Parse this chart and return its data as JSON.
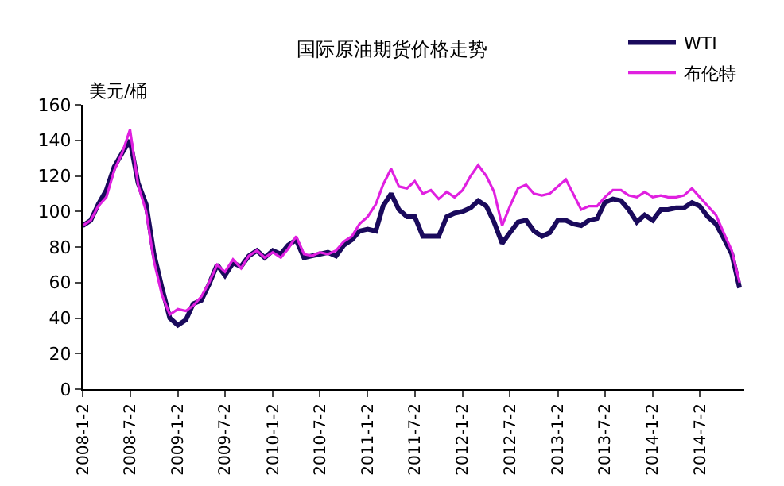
{
  "chart_data": {
    "type": "line",
    "title": "国际原油期货价格走势",
    "ylabel": "美元/桶",
    "x": [
      "2008-01-02",
      "2008-02-02",
      "2008-03-02",
      "2008-04-02",
      "2008-05-02",
      "2008-06-02",
      "2008-07-02",
      "2008-08-02",
      "2008-09-02",
      "2008-10-02",
      "2008-11-02",
      "2008-12-02",
      "2009-01-02",
      "2009-02-02",
      "2009-03-02",
      "2009-04-02",
      "2009-05-02",
      "2009-06-02",
      "2009-07-02",
      "2009-08-02",
      "2009-09-02",
      "2009-10-02",
      "2009-11-02",
      "2009-12-02",
      "2010-01-02",
      "2010-02-02",
      "2010-03-02",
      "2010-04-02",
      "2010-05-02",
      "2010-06-02",
      "2010-07-02",
      "2010-08-02",
      "2010-09-02",
      "2010-10-02",
      "2010-11-02",
      "2010-12-02",
      "2011-01-02",
      "2011-02-02",
      "2011-03-02",
      "2011-04-02",
      "2011-05-02",
      "2011-06-02",
      "2011-07-02",
      "2011-08-02",
      "2011-09-02",
      "2011-10-02",
      "2011-11-02",
      "2011-12-02",
      "2012-01-02",
      "2012-02-02",
      "2012-03-02",
      "2012-04-02",
      "2012-05-02",
      "2012-06-02",
      "2012-07-02",
      "2012-08-02",
      "2012-09-02",
      "2012-10-02",
      "2012-11-02",
      "2012-12-02",
      "2013-01-02",
      "2013-02-02",
      "2013-03-02",
      "2013-04-02",
      "2013-05-02",
      "2013-06-02",
      "2013-07-02",
      "2013-08-02",
      "2013-09-02",
      "2013-10-02",
      "2013-11-02",
      "2013-12-02",
      "2014-01-02",
      "2014-02-02",
      "2014-03-02",
      "2014-04-02",
      "2014-05-02",
      "2014-06-02",
      "2014-07-02",
      "2014-08-02",
      "2014-09-02",
      "2014-10-02",
      "2014-11-02",
      "2014-12-02"
    ],
    "series": [
      {
        "name": "WTI",
        "color": "#1a0a5c",
        "values": [
          92,
          95,
          104,
          112,
          125,
          133,
          140,
          116,
          104,
          76,
          57,
          40,
          36,
          39,
          48,
          50,
          59,
          70,
          64,
          71,
          69,
          75,
          78,
          74,
          78,
          76,
          81,
          84,
          74,
          75,
          76,
          77,
          75,
          81,
          84,
          89,
          90,
          89,
          103,
          110,
          101,
          97,
          97,
          86,
          86,
          86,
          97,
          99,
          100,
          102,
          106,
          103,
          94,
          82,
          88,
          94,
          95,
          89,
          86,
          88,
          95,
          95,
          93,
          92,
          95,
          96,
          105,
          107,
          106,
          101,
          94,
          98,
          95,
          101,
          101,
          102,
          102,
          105,
          103,
          97,
          93,
          85,
          76,
          57
        ]
      },
      {
        "name": "布伦特",
        "color": "#e020e0",
        "values": [
          92,
          95,
          103,
          108,
          123,
          133,
          146,
          115,
          100,
          72,
          53,
          42,
          45,
          44,
          47,
          52,
          60,
          70,
          66,
          73,
          68,
          75,
          78,
          74,
          77,
          74,
          79,
          86,
          76,
          75,
          77,
          76,
          78,
          83,
          86,
          93,
          97,
          104,
          115,
          124,
          114,
          113,
          117,
          110,
          112,
          107,
          111,
          108,
          112,
          120,
          126,
          120,
          111,
          92,
          103,
          113,
          115,
          110,
          109,
          110,
          114,
          118,
          110,
          101,
          103,
          103,
          108,
          112,
          112,
          109,
          108,
          111,
          108,
          109,
          108,
          108,
          109,
          113,
          108,
          103,
          98,
          88,
          78,
          60
        ]
      }
    ],
    "xlim": [
      "2008-01-02",
      "2014-12-20"
    ],
    "xticks": [
      {
        "value": "2008-01-02",
        "label": "2008-1-2"
      },
      {
        "value": "2008-07-02",
        "label": "2008-7-2"
      },
      {
        "value": "2009-01-02",
        "label": "2009-1-2"
      },
      {
        "value": "2009-07-02",
        "label": "2009-7-2"
      },
      {
        "value": "2010-01-02",
        "label": "2010-1-2"
      },
      {
        "value": "2010-07-02",
        "label": "2010-7-2"
      },
      {
        "value": "2011-01-02",
        "label": "2011-1-2"
      },
      {
        "value": "2011-07-02",
        "label": "2011-7-2"
      },
      {
        "value": "2012-01-02",
        "label": "2012-1-2"
      },
      {
        "value": "2012-07-02",
        "label": "2012-7-2"
      },
      {
        "value": "2013-01-02",
        "label": "2013-1-2"
      },
      {
        "value": "2013-07-02",
        "label": "2013-7-2"
      },
      {
        "value": "2014-01-02",
        "label": "2014-1-2"
      },
      {
        "value": "2014-07-02",
        "label": "2014-7-2"
      }
    ],
    "ylim": [
      0,
      160
    ],
    "yticks": [
      0,
      20,
      40,
      60,
      80,
      100,
      120,
      140,
      160
    ],
    "grid": false,
    "legend": "top right",
    "marker": "none",
    "line_style": "solid"
  }
}
